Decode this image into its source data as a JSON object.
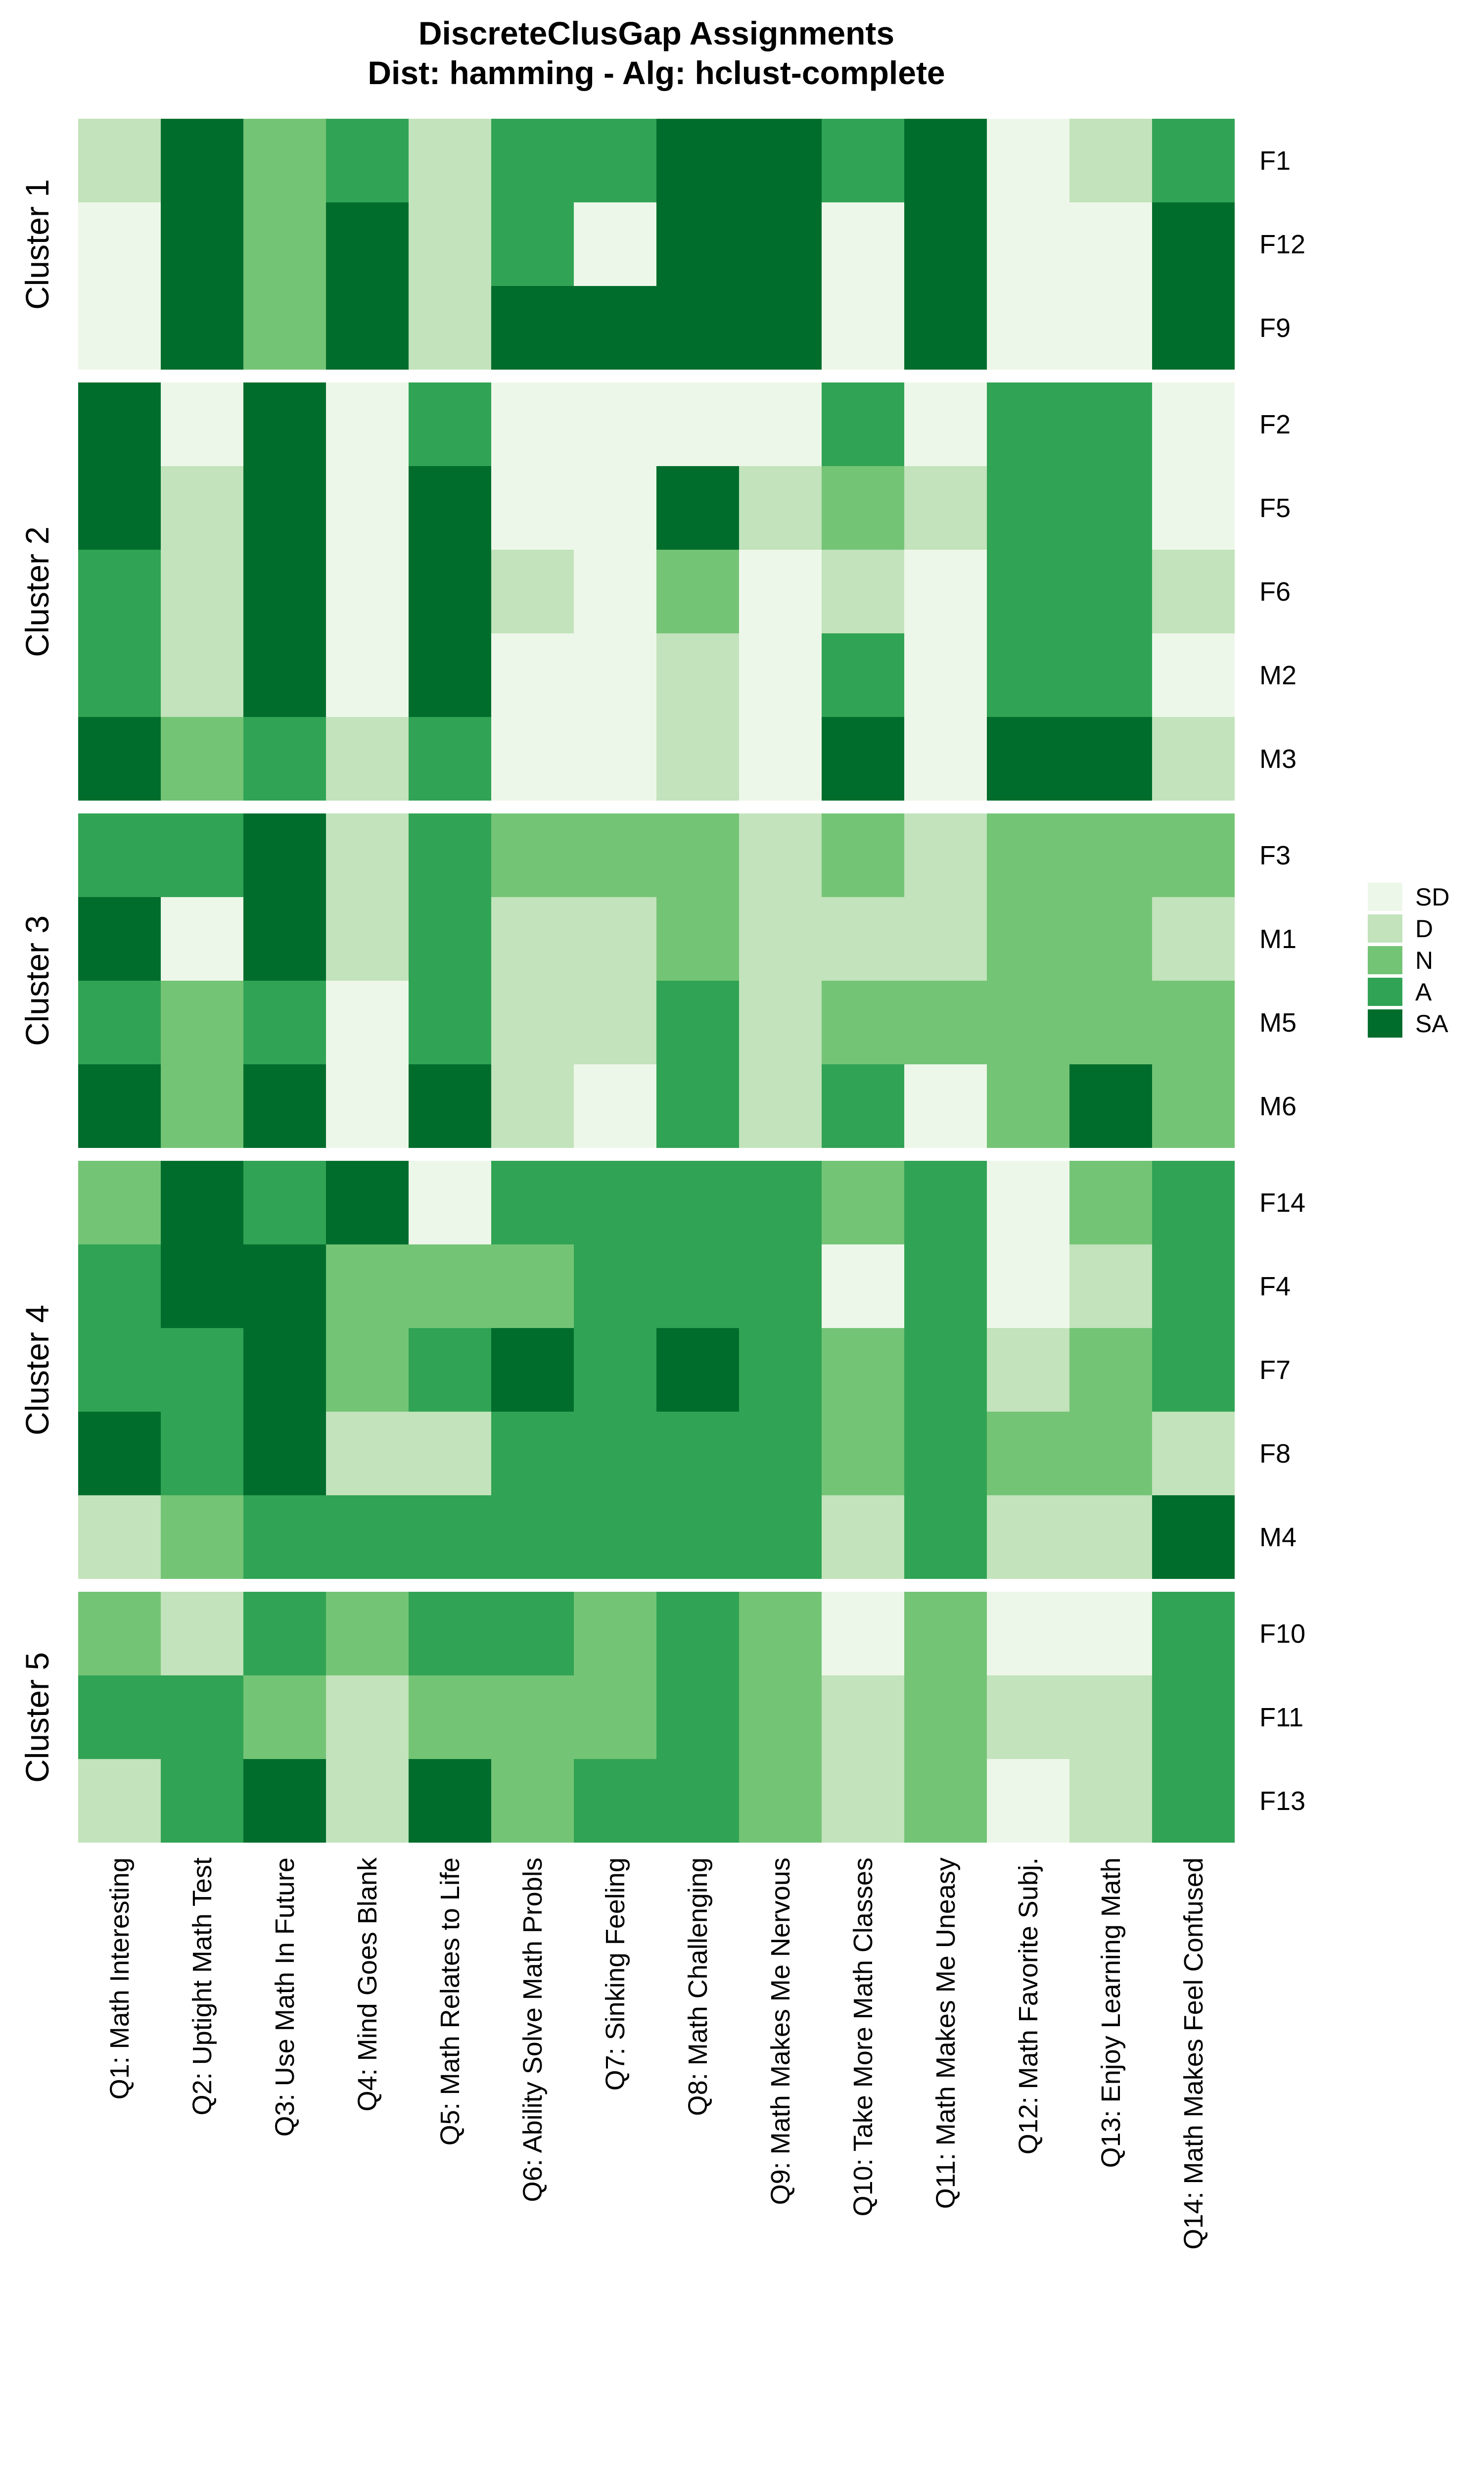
{
  "chart_data": {
    "type": "heatmap",
    "title": "DiscreteClusGap Assignments",
    "subtitle": "Dist: hamming - Alg: hclust-complete",
    "xlabel": "",
    "ylabel": "",
    "grid": false,
    "legend": {
      "position": "right",
      "levels": [
        "SD",
        "D",
        "N",
        "A",
        "SA"
      ],
      "colors": {
        "SD": "#EDF7E9",
        "D": "#C2E3BB",
        "N": "#74C476",
        "A": "#31A354",
        "SA": "#006D2C"
      }
    },
    "columns": [
      "Q1: Math Interesting",
      "Q2: Uptight Math Test",
      "Q3: Use Math In Future",
      "Q4: Mind Goes Blank",
      "Q5: Math Relates to Life",
      "Q6: Ability Solve Math Probls",
      "Q7: Sinking Feeling",
      "Q8: Math Challenging",
      "Q9: Math Makes Me Nervous",
      "Q10: Take More Math Classes",
      "Q11: Math Makes Me Uneasy",
      "Q12: Math Favorite Subj.",
      "Q13: Enjoy Learning Math",
      "Q14: Math Makes Feel Confused"
    ],
    "clusters": [
      {
        "label": "Cluster 1",
        "rows": [
          {
            "label": "F1",
            "values": [
              "D",
              "SA",
              "N",
              "A",
              "D",
              "A",
              "A",
              "SA",
              "SA",
              "A",
              "SA",
              "SD",
              "D",
              "A"
            ]
          },
          {
            "label": "F12",
            "values": [
              "SD",
              "SA",
              "N",
              "SA",
              "D",
              "A",
              "SD",
              "SA",
              "SA",
              "SD",
              "SA",
              "SD",
              "SD",
              "SA"
            ]
          },
          {
            "label": "F9",
            "values": [
              "SD",
              "SA",
              "N",
              "SA",
              "D",
              "SA",
              "SA",
              "SA",
              "SA",
              "SD",
              "SA",
              "SD",
              "SD",
              "SA"
            ]
          }
        ]
      },
      {
        "label": "Cluster 2",
        "rows": [
          {
            "label": "F2",
            "values": [
              "SA",
              "SD",
              "SA",
              "SD",
              "A",
              "SD",
              "SD",
              "SD",
              "SD",
              "A",
              "SD",
              "A",
              "A",
              "SD"
            ]
          },
          {
            "label": "F5",
            "values": [
              "SA",
              "D",
              "SA",
              "SD",
              "SA",
              "SD",
              "SD",
              "SA",
              "D",
              "N",
              "D",
              "A",
              "A",
              "SD"
            ]
          },
          {
            "label": "F6",
            "values": [
              "A",
              "D",
              "SA",
              "SD",
              "SA",
              "D",
              "SD",
              "N",
              "SD",
              "D",
              "SD",
              "A",
              "A",
              "D"
            ]
          },
          {
            "label": "M2",
            "values": [
              "A",
              "D",
              "SA",
              "SD",
              "SA",
              "SD",
              "SD",
              "D",
              "SD",
              "A",
              "SD",
              "A",
              "A",
              "SD"
            ]
          },
          {
            "label": "M3",
            "values": [
              "SA",
              "N",
              "A",
              "D",
              "A",
              "SD",
              "SD",
              "D",
              "SD",
              "SA",
              "SD",
              "SA",
              "SA",
              "D"
            ]
          }
        ]
      },
      {
        "label": "Cluster 3",
        "rows": [
          {
            "label": "F3",
            "values": [
              "A",
              "A",
              "SA",
              "D",
              "A",
              "N",
              "N",
              "N",
              "D",
              "N",
              "D",
              "N",
              "N",
              "N"
            ]
          },
          {
            "label": "M1",
            "values": [
              "SA",
              "SD",
              "SA",
              "D",
              "A",
              "D",
              "D",
              "N",
              "D",
              "D",
              "D",
              "N",
              "N",
              "D"
            ]
          },
          {
            "label": "M5",
            "values": [
              "A",
              "N",
              "A",
              "SD",
              "A",
              "D",
              "D",
              "A",
              "D",
              "N",
              "N",
              "N",
              "N",
              "N"
            ]
          },
          {
            "label": "M6",
            "values": [
              "SA",
              "N",
              "SA",
              "SD",
              "SA",
              "D",
              "SD",
              "A",
              "D",
              "A",
              "SD",
              "N",
              "SA",
              "N"
            ]
          }
        ]
      },
      {
        "label": "Cluster 4",
        "rows": [
          {
            "label": "F14",
            "values": [
              "N",
              "SA",
              "A",
              "SA",
              "SD",
              "A",
              "A",
              "A",
              "A",
              "N",
              "A",
              "SD",
              "N",
              "A"
            ]
          },
          {
            "label": "F4",
            "values": [
              "A",
              "SA",
              "SA",
              "N",
              "N",
              "N",
              "A",
              "A",
              "A",
              "SD",
              "A",
              "SD",
              "D",
              "A"
            ]
          },
          {
            "label": "F7",
            "values": [
              "A",
              "A",
              "SA",
              "N",
              "A",
              "SA",
              "A",
              "SA",
              "A",
              "N",
              "A",
              "D",
              "N",
              "A"
            ]
          },
          {
            "label": "F8",
            "values": [
              "SA",
              "A",
              "SA",
              "D",
              "D",
              "A",
              "A",
              "A",
              "A",
              "N",
              "A",
              "N",
              "N",
              "D"
            ]
          },
          {
            "label": "M4",
            "values": [
              "D",
              "N",
              "A",
              "A",
              "A",
              "A",
              "A",
              "A",
              "A",
              "D",
              "A",
              "D",
              "D",
              "SA"
            ]
          }
        ]
      },
      {
        "label": "Cluster 5",
        "rows": [
          {
            "label": "F10",
            "values": [
              "N",
              "D",
              "A",
              "N",
              "A",
              "A",
              "N",
              "A",
              "N",
              "SD",
              "N",
              "SD",
              "SD",
              "A"
            ]
          },
          {
            "label": "F11",
            "values": [
              "A",
              "A",
              "N",
              "D",
              "N",
              "N",
              "N",
              "A",
              "N",
              "D",
              "N",
              "D",
              "D",
              "A"
            ]
          },
          {
            "label": "F13",
            "values": [
              "D",
              "A",
              "SA",
              "D",
              "SA",
              "N",
              "A",
              "A",
              "N",
              "D",
              "N",
              "SD",
              "D",
              "A"
            ]
          }
        ]
      }
    ]
  }
}
